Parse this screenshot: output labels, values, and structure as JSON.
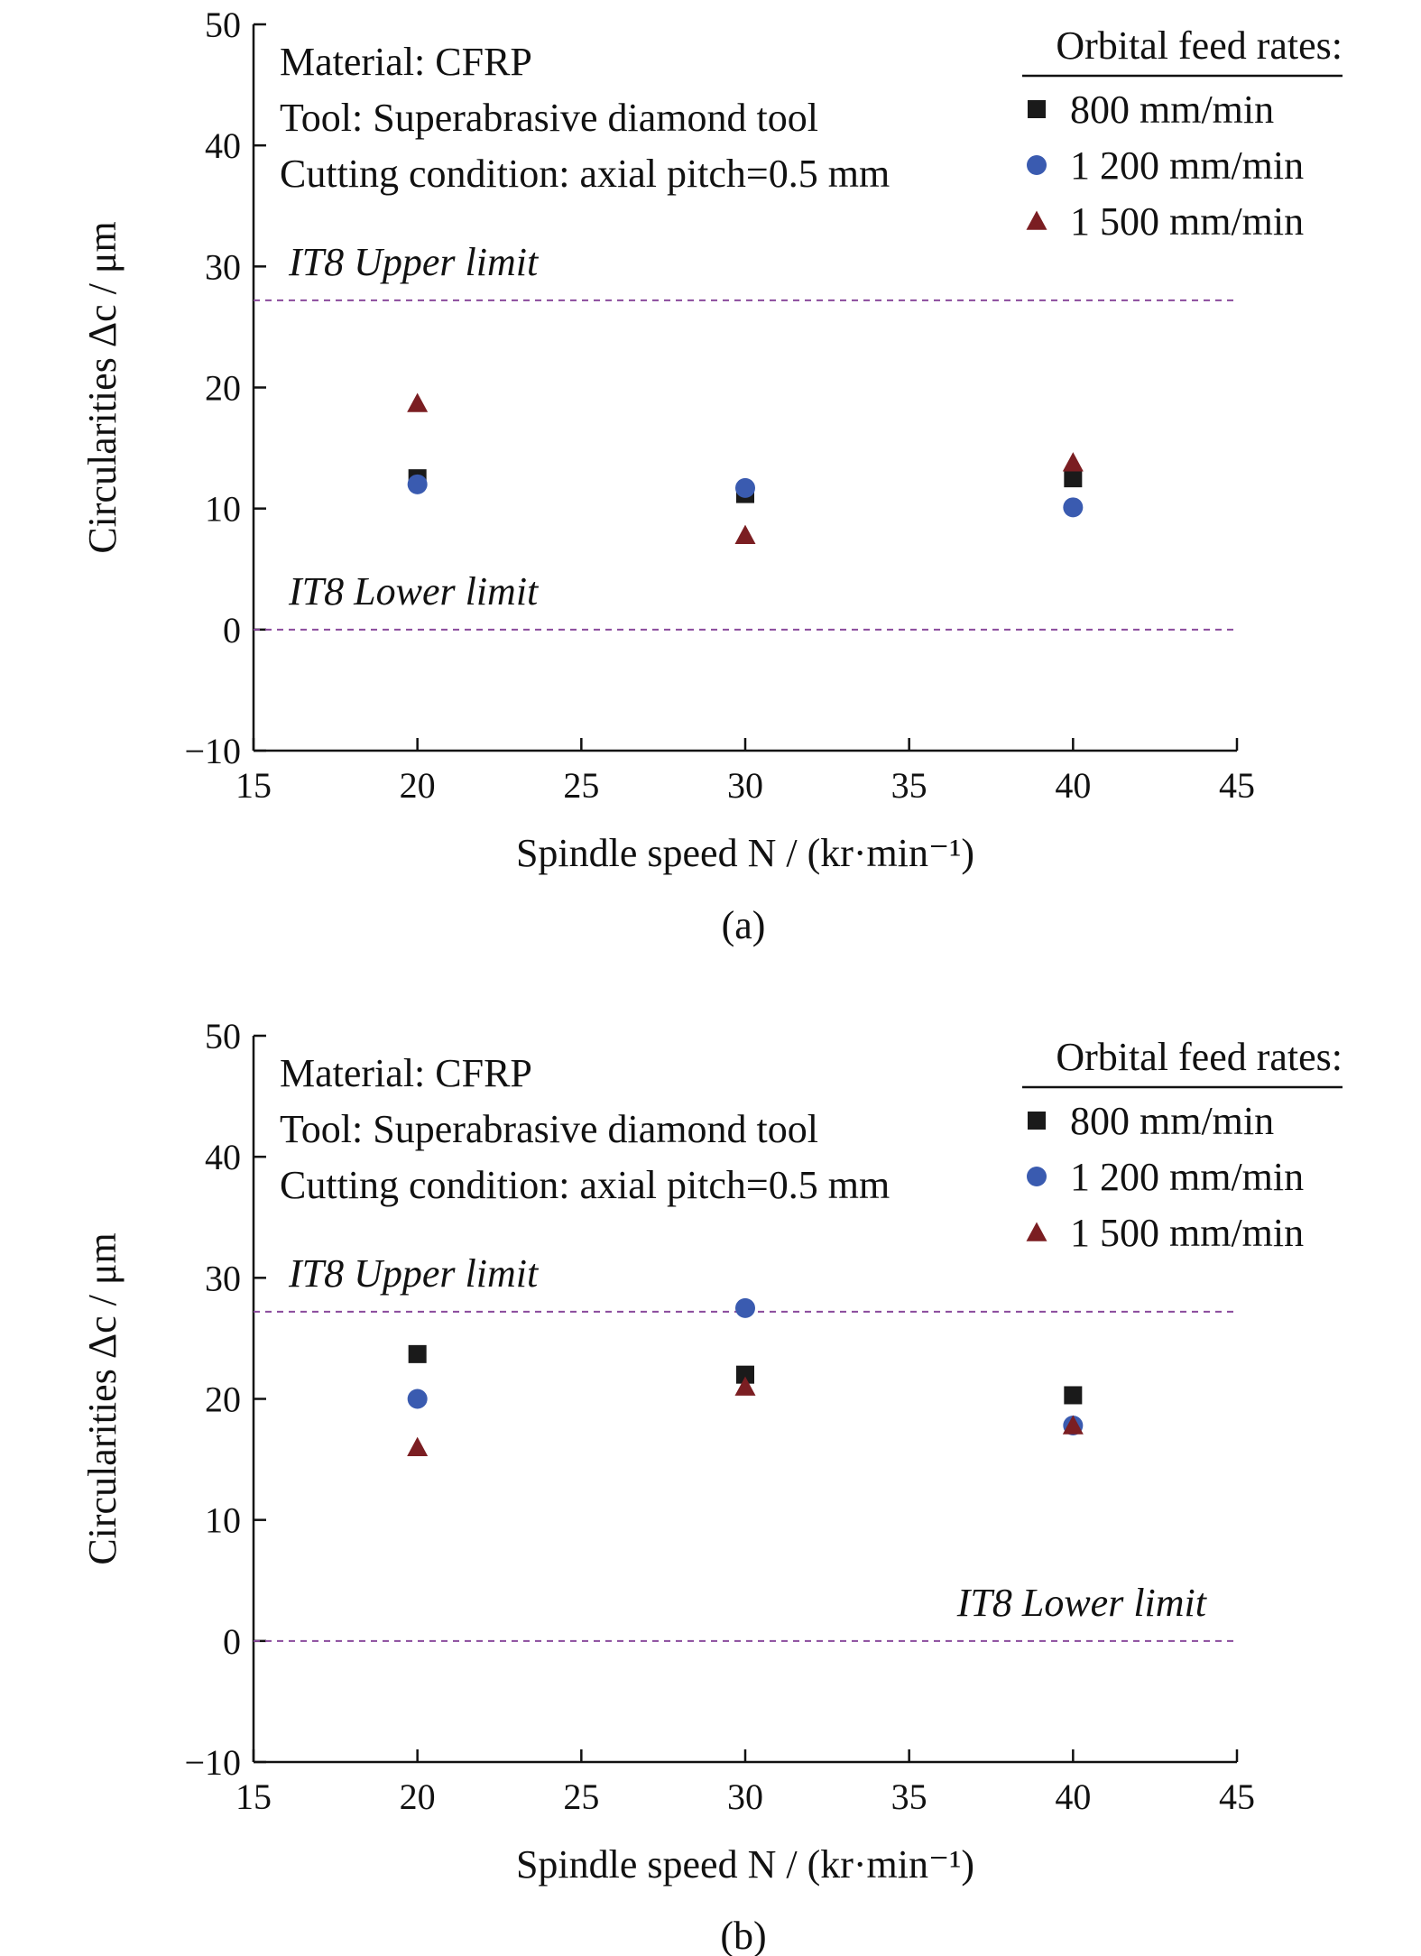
{
  "chart_data": [
    {
      "type": "scatter",
      "panel_label": "(a)",
      "info_lines": [
        "Material: CFRP",
        "Tool: Superabrasive diamond tool",
        "Cutting condition: axial pitch=0.5 mm"
      ],
      "legend_title": "Orbital feed rates:",
      "legend_position": "top-right",
      "xlabel": "Spindle speed N / (kr·min⁻¹)",
      "ylabel": "Circularities Δc / μm",
      "xlim": [
        15,
        45
      ],
      "ylim": [
        -10,
        50
      ],
      "xticks": [
        "15",
        "20",
        "25",
        "30",
        "35",
        "40",
        "45"
      ],
      "yticks": [
        "−10",
        "0",
        "10",
        "20",
        "30",
        "40",
        "50"
      ],
      "grid": false,
      "reference_lines": [
        {
          "label": "IT8 Upper limit",
          "y": 27.2,
          "color": "#8a4a9c"
        },
        {
          "label": "IT8 Lower limit",
          "y": 0,
          "color": "#8a4a9c"
        }
      ],
      "series": [
        {
          "name": "800 mm/min",
          "marker": "square",
          "color": "#1a1a1a",
          "x": [
            20,
            30,
            40
          ],
          "y": [
            12.5,
            11.2,
            12.5
          ]
        },
        {
          "name": "1 200 mm/min",
          "marker": "circle",
          "color": "#3a5bb0",
          "x": [
            20,
            30,
            40
          ],
          "y": [
            12.0,
            11.7,
            10.1
          ]
        },
        {
          "name": "1 500 mm/min",
          "marker": "triangle",
          "color": "#7b1e22",
          "x": [
            20,
            30,
            40
          ],
          "y": [
            18.7,
            7.8,
            13.8
          ]
        }
      ]
    },
    {
      "type": "scatter",
      "panel_label": "(b)",
      "info_lines": [
        "Material: CFRP",
        "Tool: Superabrasive diamond tool",
        "Cutting condition: axial pitch=0.5 mm"
      ],
      "legend_title": "Orbital feed rates:",
      "legend_position": "top-right",
      "xlabel": "Spindle speed N / (kr·min⁻¹)",
      "ylabel": "Circularities Δc / μm",
      "xlim": [
        15,
        45
      ],
      "ylim": [
        -10,
        50
      ],
      "xticks": [
        "15",
        "20",
        "25",
        "30",
        "35",
        "40",
        "45"
      ],
      "yticks": [
        "−10",
        "0",
        "10",
        "20",
        "30",
        "40",
        "50"
      ],
      "grid": false,
      "reference_lines": [
        {
          "label": "IT8 Upper limit",
          "y": 27.2,
          "color": "#8a4a9c"
        },
        {
          "label": "IT8 Lower limit",
          "y": 0,
          "color": "#8a4a9c"
        }
      ],
      "series": [
        {
          "name": "800 mm/min",
          "marker": "square",
          "color": "#1a1a1a",
          "x": [
            20,
            30,
            40
          ],
          "y": [
            23.7,
            22.0,
            20.3
          ]
        },
        {
          "name": "1 200 mm/min",
          "marker": "circle",
          "color": "#3a5bb0",
          "x": [
            20,
            30,
            40
          ],
          "y": [
            20.0,
            27.5,
            17.8
          ]
        },
        {
          "name": "1 500 mm/min",
          "marker": "triangle",
          "color": "#7b1e22",
          "x": [
            20,
            30,
            40
          ],
          "y": [
            16.0,
            21.0,
            17.8
          ]
        }
      ]
    }
  ]
}
